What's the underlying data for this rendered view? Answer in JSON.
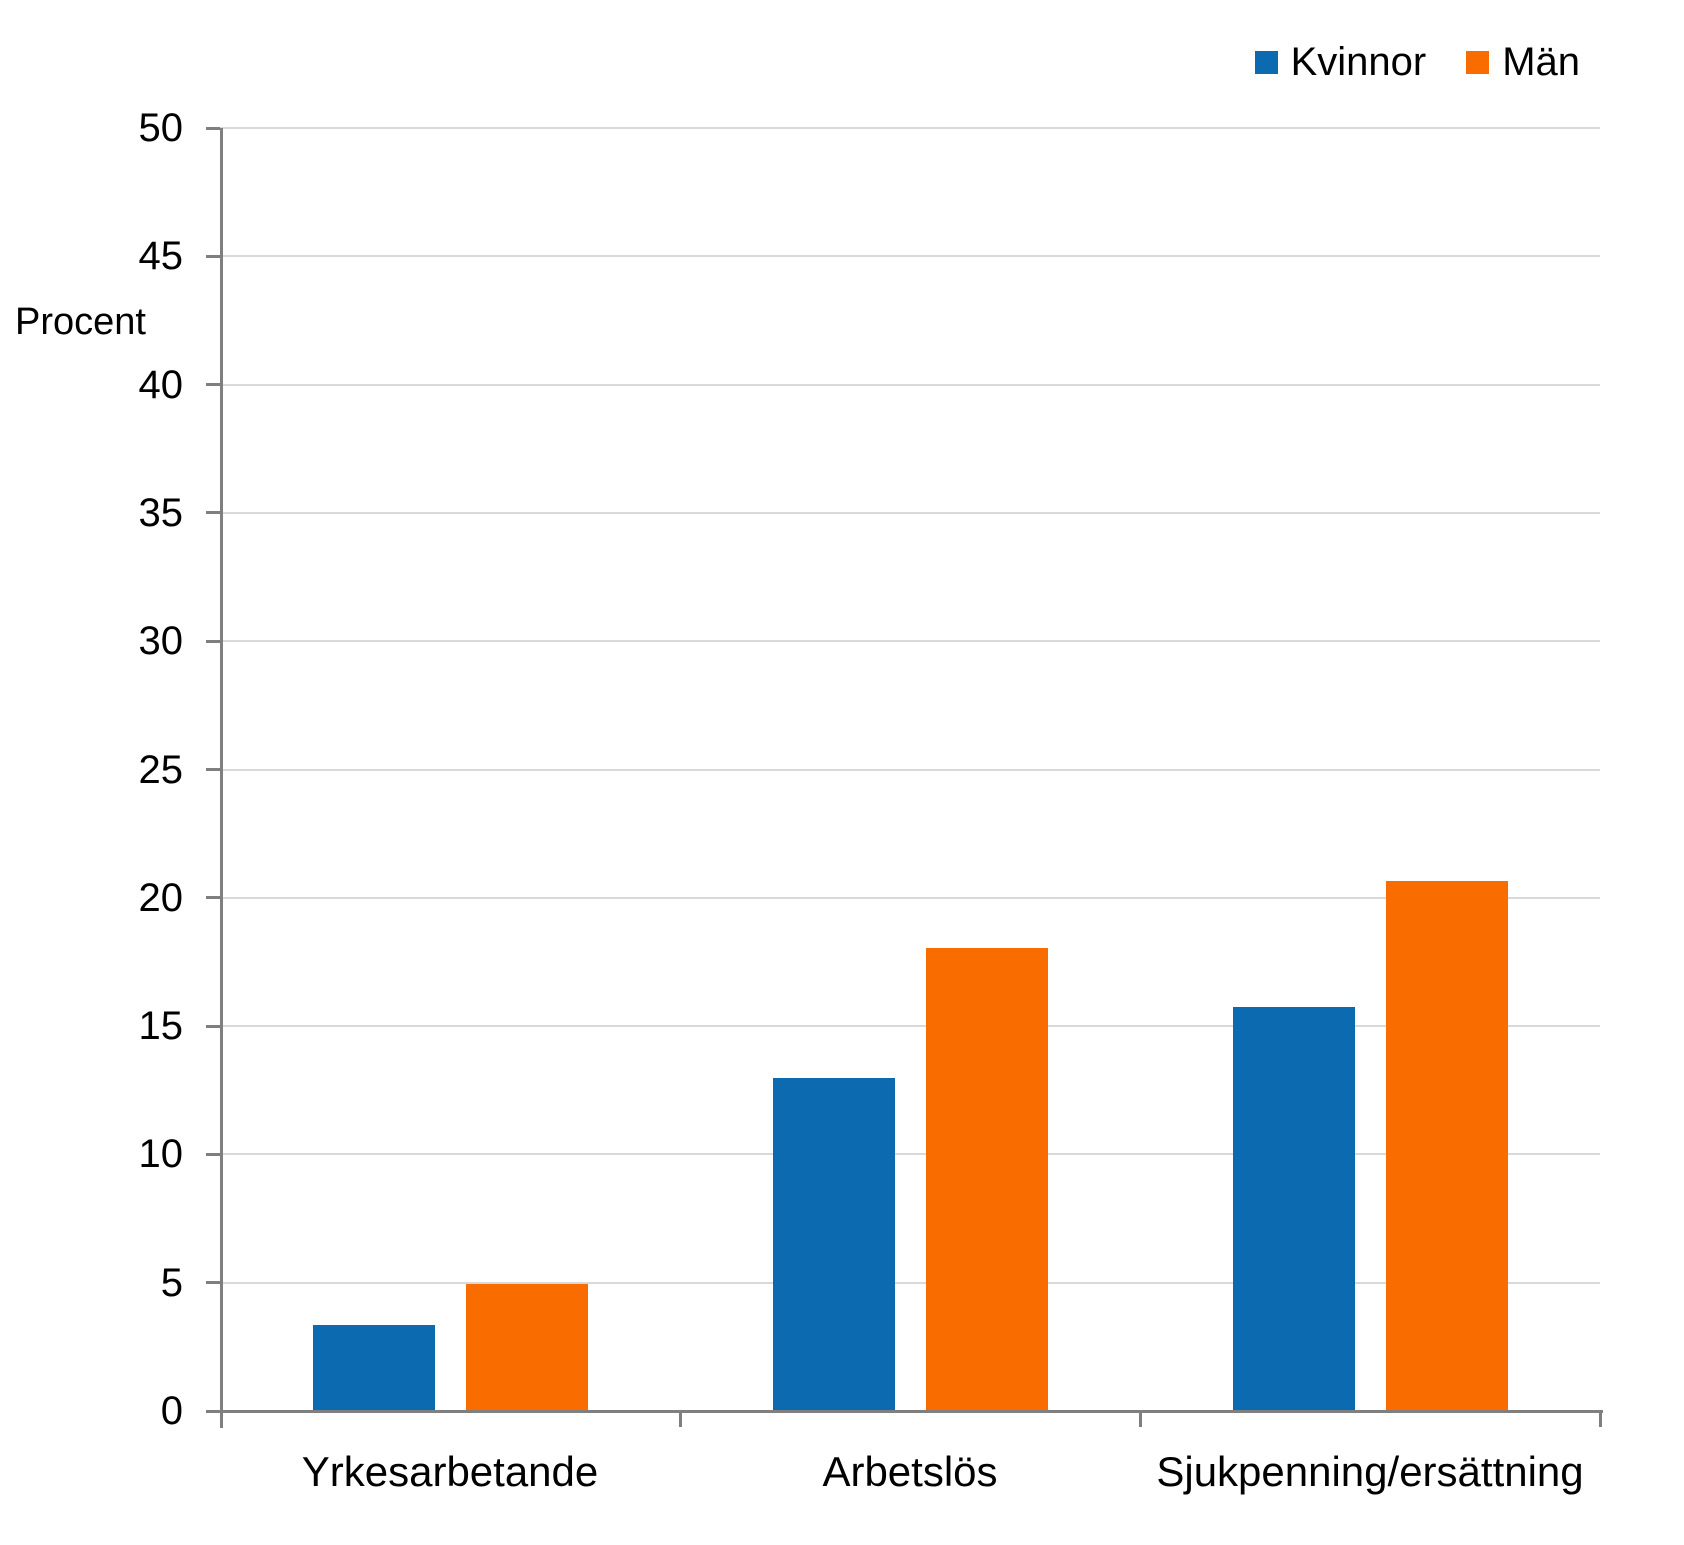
{
  "chart_data": {
    "type": "bar",
    "title": "",
    "xlabel": "",
    "ylabel": "Procent",
    "categories": [
      "Yrkesarbetande",
      "Arbetslös",
      "Sjukpenning/ersättning"
    ],
    "series": [
      {
        "name": "Kvinnor",
        "color": "#0c6ab1",
        "values": [
          3.4,
          13.0,
          15.8
        ]
      },
      {
        "name": "Män",
        "color": "#f96c00",
        "values": [
          5.0,
          18.1,
          20.7
        ]
      }
    ],
    "ylim": [
      0,
      50
    ],
    "yticks": [
      0,
      5,
      10,
      15,
      20,
      25,
      30,
      35,
      40,
      45,
      50
    ],
    "grid": true,
    "legend_position": "top-right",
    "colors": {
      "gridline": "#d9d9d9",
      "axis": "#7f7f7f",
      "text": "#000000",
      "background": "#ffffff"
    }
  }
}
